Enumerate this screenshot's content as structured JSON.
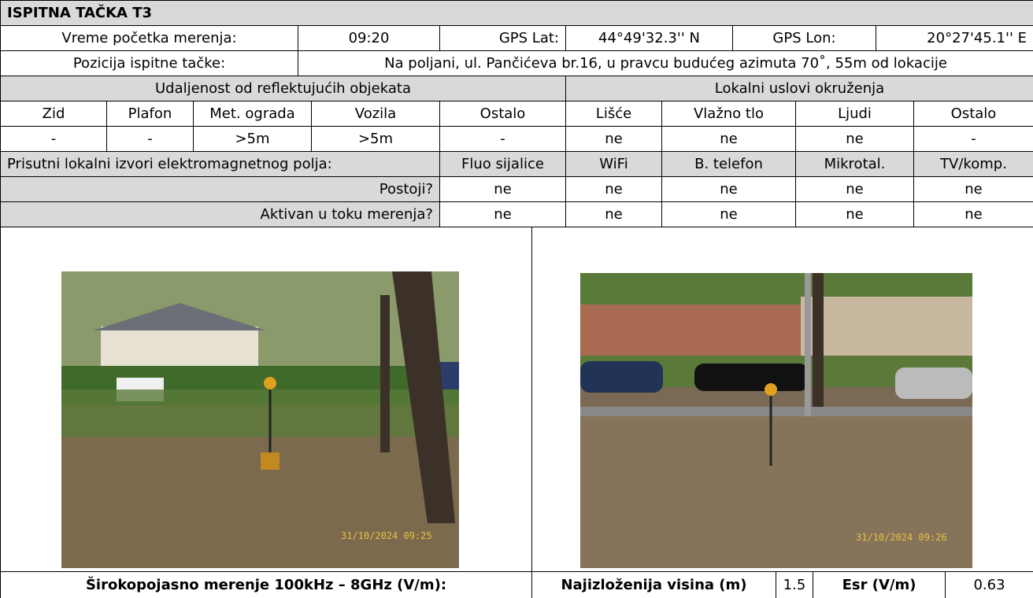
{
  "header": {
    "title": "ISPITNA TAČKA T3"
  },
  "info": {
    "start_time_label": "Vreme početka merenja:",
    "start_time": "09:20",
    "gps_lat_label": "GPS Lat:",
    "gps_lat": "44°49'32.3'' N",
    "gps_lon_label": "GPS Lon:",
    "gps_lon": "20°27'45.1'' E",
    "position_label": "Pozicija ispitne tačke:",
    "position": "Na poljani, ul. Pančićeva br.16, u pravcu budućeg azimuta 70˚, 55m od lokacije"
  },
  "distance": {
    "title": "Udaljenost od reflektujućih objekata",
    "columns": [
      "Zid",
      "Plafon",
      "Met. ograda",
      "Vozila",
      "Ostalo"
    ],
    "values": [
      "-",
      "-",
      ">5m",
      ">5m",
      "-"
    ]
  },
  "environment": {
    "title": "Lokalni uslovi okruženja",
    "columns": [
      "Lišće",
      "Vlažno tlo",
      "Ljudi",
      "Ostalo"
    ],
    "values": [
      "ne",
      "ne",
      "ne",
      "-"
    ]
  },
  "sources": {
    "title": "Prisutni lokalni izvori elektromagnetnog polja:",
    "columns": [
      "Fluo sijalice",
      "WiFi",
      "B. telefon",
      "Mikrotal.",
      "TV/komp."
    ],
    "rows": [
      {
        "label": "Postoji?",
        "values": [
          "ne",
          "ne",
          "ne",
          "ne",
          "ne"
        ]
      },
      {
        "label": "Aktivan u toku merenja?",
        "values": [
          "ne",
          "ne",
          "ne",
          "ne",
          "ne"
        ]
      }
    ]
  },
  "photos": [
    {
      "timestamp": "31/10/2024 09:25"
    },
    {
      "timestamp": "31/10/2024 09:26"
    }
  ],
  "measurement": {
    "label": "Širokopojasno merenje 100kHz – 8GHz (V/m):",
    "height_label": "Najizloženija visina (m)",
    "height": 1.5,
    "esr_label": "Esr (V/m)",
    "esr": 0.63
  }
}
